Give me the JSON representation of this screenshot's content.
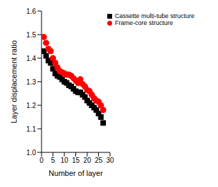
{
  "chart_data": {
    "type": "scatter",
    "x_label": "Number of layer",
    "y_label": "Layer displacement ratio",
    "x": [
      1,
      2,
      3,
      4,
      5,
      6,
      7,
      8,
      9,
      10,
      11,
      12,
      13,
      14,
      15,
      16,
      17,
      18,
      19,
      20,
      21,
      22,
      23,
      24,
      25,
      26,
      27
    ],
    "series": [
      {
        "name": "Cassette multi-tube structure",
        "color": "#000000",
        "marker": "square",
        "values": [
          1.43,
          1.41,
          1.39,
          1.38,
          1.355,
          1.335,
          1.325,
          1.32,
          1.31,
          1.3,
          1.295,
          1.285,
          1.28,
          1.27,
          1.26,
          1.255,
          1.255,
          1.245,
          1.235,
          1.22,
          1.21,
          1.2,
          1.19,
          1.18,
          1.165,
          1.15,
          1.125
        ]
      },
      {
        "name": "Frame-core structure",
        "color": "#ff0000",
        "marker": "circle",
        "values": [
          1.49,
          1.465,
          1.44,
          1.43,
          1.4,
          1.38,
          1.36,
          1.345,
          1.34,
          1.335,
          1.33,
          1.33,
          1.325,
          1.315,
          1.305,
          1.295,
          1.31,
          1.29,
          1.28,
          1.265,
          1.26,
          1.245,
          1.23,
          1.22,
          1.215,
          1.2,
          1.18
        ]
      }
    ],
    "xlim": [
      0,
      30
    ],
    "xticks": [
      0,
      5,
      10,
      15,
      20,
      25,
      30
    ],
    "ylim": [
      1.0,
      1.6
    ],
    "yticks": [
      {
        "value": 1.0,
        "label": "1.0"
      },
      {
        "value": 1.1,
        "label": "1.1"
      },
      {
        "value": 1.2,
        "label": "1.2"
      },
      {
        "value": 1.3,
        "label": "1.3"
      },
      {
        "value": 1.4,
        "label": "1.4"
      },
      {
        "value": 1.5,
        "label": "1.5"
      },
      {
        "value": 1.6,
        "label": "1.6"
      }
    ],
    "legend": "upper right",
    "grid": false
  }
}
